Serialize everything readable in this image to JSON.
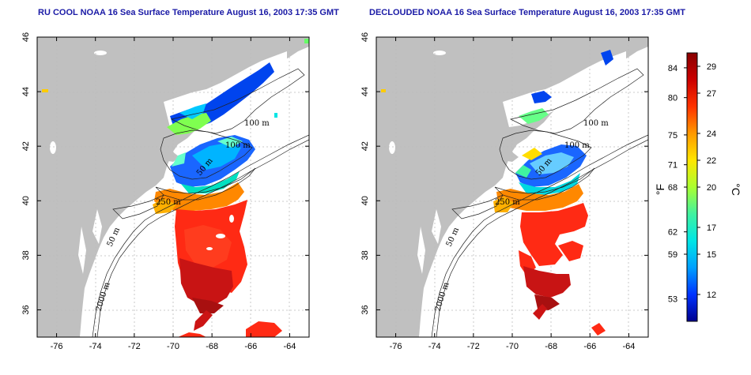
{
  "titles": {
    "left": "RU COOL NOAA 16 Sea Surface Temperature August 16, 2003 17:35 GMT",
    "right": "DECLOUDED NOAA 16 Sea Surface Temperature August 16, 2003 17:35 GMT"
  },
  "map": {
    "lon_ticks": [
      "-76",
      "-74",
      "-72",
      "-70",
      "-68",
      "-66",
      "-64"
    ],
    "lat_ticks": [
      "36",
      "38",
      "40",
      "42",
      "44",
      "46"
    ],
    "contour_labels": {
      "d100a": "100 m",
      "d100b": "100 m",
      "d50": "50 m",
      "d250": "250 m",
      "s50": "50 m",
      "s2000": "2000 m"
    }
  },
  "colorbar": {
    "fahrenheit_label": "°F",
    "celsius_label": "°C",
    "fahrenheit_ticks": [
      "84",
      "80",
      "75",
      "71",
      "68",
      "62",
      "59",
      "53"
    ],
    "celsius_ticks": [
      "29",
      "27",
      "24",
      "22",
      "20",
      "17",
      "15",
      "12"
    ],
    "colors": [
      "#00008f",
      "#0033ff",
      "#00a0ff",
      "#00e5e5",
      "#40f2a0",
      "#aaff30",
      "#ffe600",
      "#ff9900",
      "#ff3300",
      "#cc0000",
      "#880000"
    ]
  },
  "colors": {
    "land": "#c0c0c0",
    "ocean": "#ffffff",
    "grid": "#bbbbbb",
    "title": "#1a1aa6"
  }
}
